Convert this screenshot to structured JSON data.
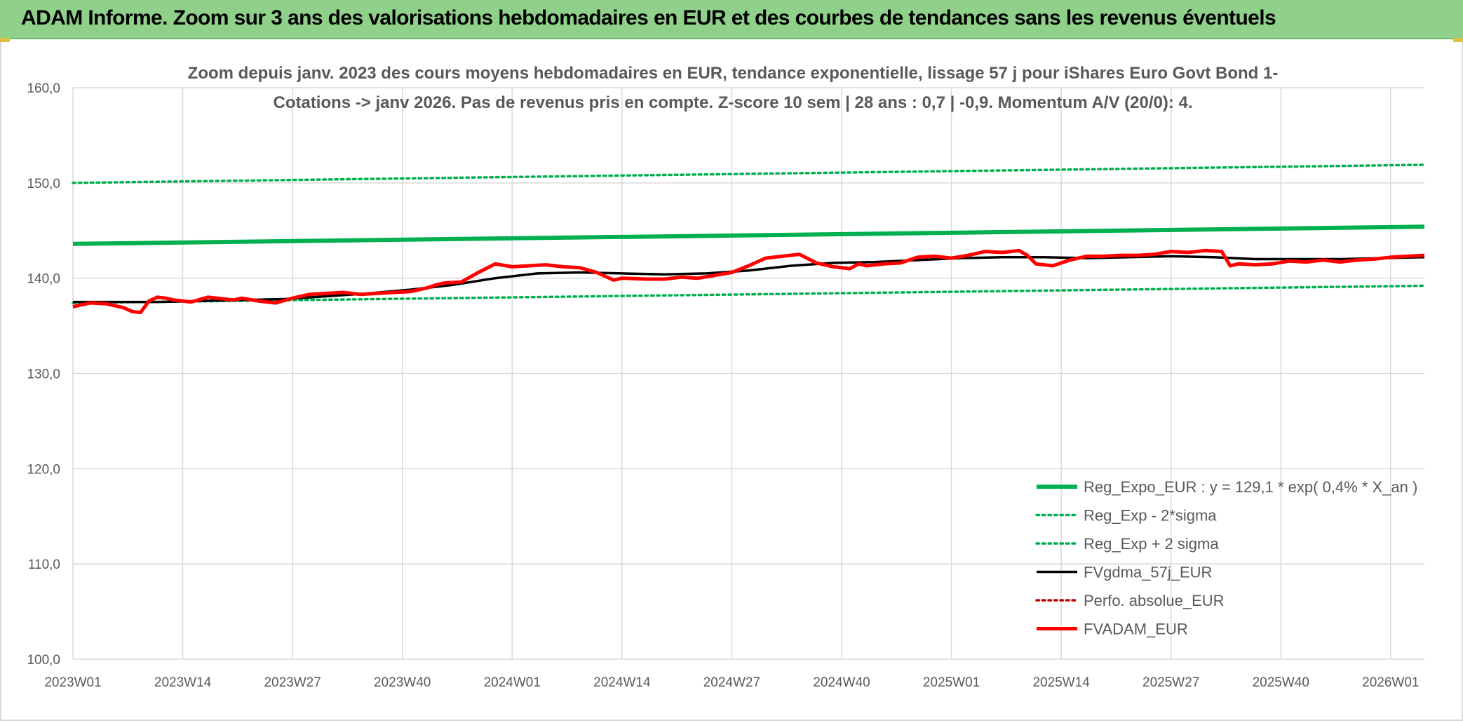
{
  "header": {
    "title": "ADAM Informe. Zoom sur 3 ans des valorisations hebdomadaires en EUR et des courbes de tendances sans les revenus éventuels"
  },
  "colors": {
    "banner": "#8fd18a",
    "reg_expo": "#00b050",
    "fvgdma": "#000000",
    "fvadam": "#ff0000",
    "perfo": "#c00000"
  },
  "chart_data": {
    "type": "line",
    "title_line1": "Zoom depuis janv. 2023 des cours moyens hebdomadaires en EUR, tendance exponentielle, lissage 57 j pour iShares Euro Govt Bond 1-",
    "title_line2": "Cotations -> janv 2026. Pas de revenus pris en compte. Z-score 10 sem | 28 ans : 0,7 | -0,9. Momentum A/V (20/0): 4.",
    "ylim": [
      100,
      160
    ],
    "yticks": [
      "100,0",
      "110,0",
      "120,0",
      "130,0",
      "140,0",
      "150,0",
      "160,0"
    ],
    "x_tick_labels": [
      "2023W01",
      "2023W14",
      "2023W27",
      "2023W40",
      "2024W01",
      "2024W14",
      "2024W27",
      "2024W40",
      "2025W01",
      "2025W14",
      "2025W27",
      "2025W40",
      "2026W01"
    ],
    "x_tick_weeks": [
      0,
      13,
      26,
      39,
      52,
      65,
      78,
      91,
      104,
      117,
      130,
      143,
      156
    ],
    "x_range_weeks": [
      0,
      160
    ],
    "series": [
      {
        "name": "Reg_Expo_EUR : y = 129,1 * exp( 0,4% *  X_an )",
        "style": "solid-thick",
        "color": "#00b050",
        "x": [
          0,
          160
        ],
        "values": [
          143.6,
          145.4
        ]
      },
      {
        "name": "Reg_Exp - 2*sigma",
        "style": "dotted",
        "color": "#00b050",
        "x": [
          0,
          160
        ],
        "values": [
          137.4,
          139.2
        ]
      },
      {
        "name": "Reg_Exp + 2 sigma",
        "style": "dotted",
        "color": "#00b050",
        "x": [
          0,
          160
        ],
        "values": [
          150.0,
          151.9
        ]
      },
      {
        "name": "FVgdma_57j_EUR",
        "style": "solid",
        "color": "#000000",
        "x": [
          0,
          5,
          10,
          15,
          20,
          25,
          30,
          35,
          40,
          45,
          50,
          55,
          60,
          65,
          70,
          75,
          80,
          85,
          90,
          95,
          100,
          105,
          110,
          115,
          120,
          125,
          130,
          135,
          140,
          145,
          150,
          155,
          160
        ],
        "values": [
          137.5,
          137.5,
          137.5,
          137.6,
          137.7,
          137.8,
          138.1,
          138.4,
          138.8,
          139.3,
          140.0,
          140.5,
          140.6,
          140.5,
          140.4,
          140.5,
          140.8,
          141.3,
          141.6,
          141.7,
          141.9,
          142.1,
          142.2,
          142.2,
          142.1,
          142.2,
          142.3,
          142.2,
          142.0,
          142.0,
          142.0,
          142.1,
          142.2
        ]
      },
      {
        "name": "Perfo. absolue_EUR",
        "style": "dotted",
        "color": "#c00000",
        "x": [],
        "values": []
      },
      {
        "name": "FVADAM_EUR",
        "style": "solid-thick",
        "color": "#ff0000",
        "x": [
          0,
          2,
          4,
          6,
          7,
          8,
          9,
          10,
          11,
          12,
          14,
          16,
          18,
          19,
          20,
          22,
          24,
          26,
          28,
          30,
          32,
          34,
          36,
          38,
          40,
          42,
          43,
          44,
          46,
          48,
          50,
          52,
          54,
          56,
          58,
          60,
          62,
          64,
          65,
          68,
          70,
          72,
          74,
          76,
          78,
          80,
          82,
          84,
          86,
          88,
          90,
          92,
          93,
          94,
          96,
          98,
          100,
          102,
          104,
          106,
          108,
          110,
          112,
          113,
          114,
          116,
          118,
          120,
          122,
          124,
          126,
          128,
          130,
          132,
          134,
          136,
          137,
          138,
          140,
          142,
          144,
          146,
          148,
          150,
          152,
          154,
          156,
          158,
          160
        ],
        "values": [
          137.0,
          137.4,
          137.3,
          136.9,
          136.5,
          136.4,
          137.6,
          138.0,
          137.9,
          137.7,
          137.5,
          138.0,
          137.8,
          137.7,
          137.9,
          137.6,
          137.4,
          137.9,
          138.3,
          138.4,
          138.5,
          138.3,
          138.4,
          138.5,
          138.6,
          139.0,
          139.3,
          139.5,
          139.6,
          140.6,
          141.5,
          141.2,
          141.3,
          141.4,
          141.2,
          141.1,
          140.6,
          139.8,
          140.0,
          139.9,
          139.9,
          140.1,
          140.0,
          140.3,
          140.6,
          141.3,
          142.1,
          142.3,
          142.5,
          141.6,
          141.2,
          141.0,
          141.5,
          141.3,
          141.5,
          141.6,
          142.2,
          142.3,
          142.1,
          142.4,
          142.8,
          142.7,
          142.9,
          142.4,
          141.5,
          141.3,
          141.9,
          142.3,
          142.3,
          142.4,
          142.4,
          142.5,
          142.8,
          142.7,
          142.9,
          142.8,
          141.3,
          141.5,
          141.4,
          141.5,
          141.8,
          141.7,
          141.9,
          141.7,
          141.9,
          142.0,
          142.2,
          142.3,
          142.4
        ]
      }
    ],
    "legend_position": "bottom-right"
  }
}
